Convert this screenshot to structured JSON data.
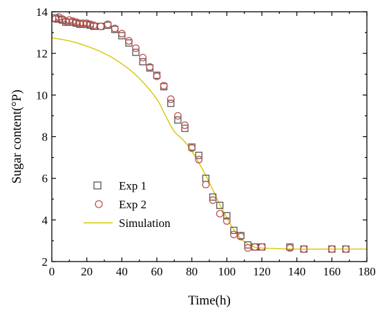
{
  "chart_data": {
    "type": "scatter",
    "xlabel": "Time(h)",
    "ylabel": "Sugar content(°P)",
    "xlim": [
      0,
      180
    ],
    "ylim": [
      2,
      14
    ],
    "x_ticks": [
      0,
      20,
      40,
      60,
      80,
      100,
      120,
      140,
      160,
      180
    ],
    "y_ticks": [
      2,
      4,
      6,
      8,
      10,
      12,
      14
    ],
    "legend_position": "bottom-left",
    "grid": false,
    "series": [
      {
        "name": "Exp 1",
        "marker": "square",
        "color": "#555555",
        "points": [
          [
            2,
            13.7
          ],
          [
            4,
            13.65
          ],
          [
            6,
            13.6
          ],
          [
            8,
            13.5
          ],
          [
            10,
            13.5
          ],
          [
            12,
            13.5
          ],
          [
            14,
            13.45
          ],
          [
            16,
            13.4
          ],
          [
            18,
            13.4
          ],
          [
            20,
            13.4
          ],
          [
            22,
            13.35
          ],
          [
            24,
            13.3
          ],
          [
            28,
            13.3
          ],
          [
            32,
            13.35
          ],
          [
            36,
            13.15
          ],
          [
            40,
            12.85
          ],
          [
            44,
            12.5
          ],
          [
            48,
            12.05
          ],
          [
            52,
            11.6
          ],
          [
            56,
            11.3
          ],
          [
            60,
            10.95
          ],
          [
            64,
            10.4
          ],
          [
            68,
            9.6
          ],
          [
            72,
            8.8
          ],
          [
            76,
            8.4
          ],
          [
            80,
            7.5
          ],
          [
            84,
            7.1
          ],
          [
            88,
            6.0
          ],
          [
            92,
            5.1
          ],
          [
            96,
            4.7
          ],
          [
            100,
            4.2
          ],
          [
            104,
            3.5
          ],
          [
            108,
            3.25
          ],
          [
            112,
            2.8
          ],
          [
            116,
            2.7
          ],
          [
            120,
            2.7
          ],
          [
            136,
            2.7
          ],
          [
            144,
            2.6
          ],
          [
            160,
            2.6
          ],
          [
            168,
            2.6
          ]
        ]
      },
      {
        "name": "Exp 2",
        "marker": "circle",
        "color": "#c0504d",
        "points": [
          [
            2,
            13.65
          ],
          [
            4,
            13.75
          ],
          [
            6,
            13.65
          ],
          [
            8,
            13.55
          ],
          [
            10,
            13.6
          ],
          [
            12,
            13.55
          ],
          [
            14,
            13.5
          ],
          [
            16,
            13.45
          ],
          [
            18,
            13.45
          ],
          [
            20,
            13.45
          ],
          [
            22,
            13.4
          ],
          [
            24,
            13.35
          ],
          [
            28,
            13.3
          ],
          [
            32,
            13.4
          ],
          [
            36,
            13.2
          ],
          [
            40,
            12.95
          ],
          [
            44,
            12.6
          ],
          [
            48,
            12.25
          ],
          [
            52,
            11.8
          ],
          [
            56,
            11.35
          ],
          [
            60,
            10.9
          ],
          [
            64,
            10.45
          ],
          [
            68,
            9.8
          ],
          [
            72,
            9.0
          ],
          [
            76,
            8.55
          ],
          [
            80,
            7.45
          ],
          [
            84,
            6.9
          ],
          [
            88,
            5.7
          ],
          [
            92,
            4.95
          ],
          [
            96,
            4.3
          ],
          [
            100,
            3.95
          ],
          [
            104,
            3.3
          ],
          [
            108,
            3.2
          ],
          [
            112,
            2.65
          ],
          [
            116,
            2.7
          ],
          [
            120,
            2.7
          ],
          [
            136,
            2.65
          ],
          [
            144,
            2.6
          ],
          [
            160,
            2.6
          ],
          [
            168,
            2.6
          ]
        ]
      },
      {
        "name": "Simulation",
        "type": "line",
        "color": "#d4c800",
        "points": [
          [
            0,
            12.75
          ],
          [
            10,
            12.6
          ],
          [
            20,
            12.35
          ],
          [
            30,
            12.0
          ],
          [
            40,
            11.5
          ],
          [
            50,
            10.8
          ],
          [
            60,
            9.8
          ],
          [
            65,
            9.0
          ],
          [
            70,
            8.25
          ],
          [
            75,
            7.85
          ],
          [
            80,
            7.3
          ],
          [
            85,
            6.6
          ],
          [
            90,
            5.8
          ],
          [
            95,
            4.9
          ],
          [
            100,
            4.1
          ],
          [
            105,
            3.4
          ],
          [
            110,
            2.95
          ],
          [
            115,
            2.72
          ],
          [
            120,
            2.65
          ],
          [
            140,
            2.6
          ],
          [
            160,
            2.6
          ],
          [
            180,
            2.6
          ]
        ]
      }
    ]
  }
}
